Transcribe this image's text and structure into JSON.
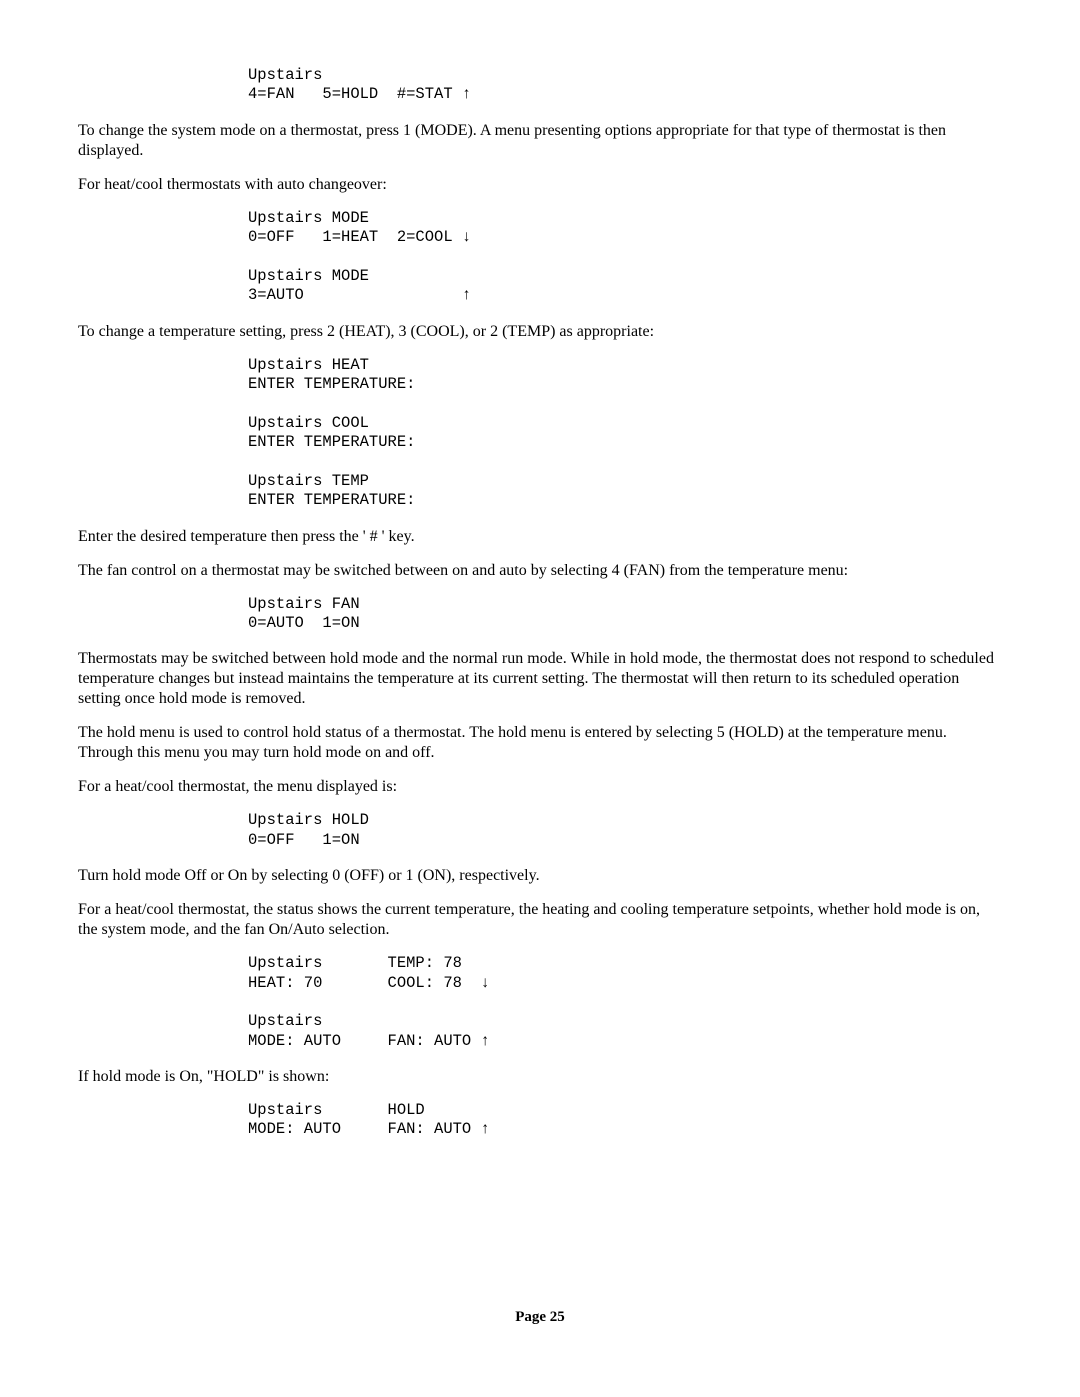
{
  "block1": "Upstairs\n4=FAN   5=HOLD  #=STAT ↑",
  "para1": "To change the system mode on a thermostat, press 1 (MODE).  A menu presenting options appropriate for that type of thermostat is then displayed.",
  "para2": "For heat/cool thermostats with auto changeover:",
  "block2": "Upstairs MODE\n0=OFF   1=HEAT  2=COOL ↓\n\nUpstairs MODE\n3=AUTO                 ↑",
  "para3": "To change a temperature setting, press 2 (HEAT), 3 (COOL), or 2 (TEMP) as appropriate:",
  "block3": "Upstairs HEAT\nENTER TEMPERATURE:\n\nUpstairs COOL\nENTER TEMPERATURE:\n\nUpstairs TEMP\nENTER TEMPERATURE:",
  "para4": "Enter the desired temperature then press the ' # ' key.",
  "para5": "The fan control on a thermostat may be switched between on and auto by selecting 4 (FAN) from the temperature menu:",
  "block4": "Upstairs FAN\n0=AUTO  1=ON",
  "para6": "Thermostats may be switched between hold mode and the normal run mode.  While in hold mode, the thermostat does not respond to scheduled temperature changes but instead maintains the temperature at its current setting.  The thermostat will then return to its scheduled operation setting once hold mode is removed.",
  "para7": "The hold menu is used to control hold status of a thermostat.  The hold menu is entered by selecting 5 (HOLD) at the temperature menu.  Through this menu you may turn hold mode on and off.",
  "para8": "For a heat/cool thermostat, the menu displayed is:",
  "block5": "Upstairs HOLD\n0=OFF   1=ON",
  "para9": "Turn hold mode Off or On by selecting 0 (OFF) or 1 (ON), respectively.",
  "para10": "For a heat/cool thermostat, the status shows the current temperature, the heating and cooling temperature setpoints, whether hold mode is on, the system mode, and the fan On/Auto selection.",
  "block6": "Upstairs       TEMP: 78\nHEAT: 70       COOL: 78  ↓\n\nUpstairs\nMODE: AUTO     FAN: AUTO ↑",
  "para11": "If hold mode is On, \"HOLD\" is shown:",
  "block7": "Upstairs       HOLD\nMODE: AUTO     FAN: AUTO ↑",
  "footer": "Page 25"
}
